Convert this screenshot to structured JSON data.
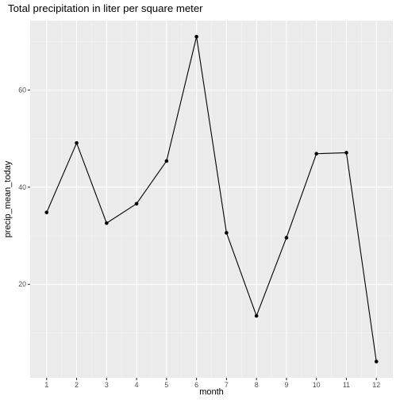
{
  "chart_data": {
    "type": "line",
    "title": "Total precipitation in liter per square meter",
    "xlabel": "month",
    "ylabel": "precip_mean_today",
    "x": [
      1,
      2,
      3,
      4,
      5,
      6,
      7,
      8,
      9,
      10,
      11,
      12
    ],
    "series": [
      {
        "values": [
          34.8,
          49.1,
          32.6,
          36.6,
          45.4,
          71.0,
          30.6,
          13.5,
          29.6,
          46.9,
          47.1,
          4.1
        ]
      }
    ],
    "xticks": [
      "1",
      "2",
      "3",
      "4",
      "5",
      "6",
      "7",
      "8",
      "9",
      "10",
      "11",
      "12"
    ],
    "yticks": [
      "20",
      "40",
      "60"
    ],
    "xlim": [
      0.45,
      12.55
    ],
    "ylim": [
      0.75,
      74.3
    ],
    "grid": true,
    "colors": {
      "panel_background": "#ebebeb",
      "grid_major": "#ffffff",
      "grid_minor": "#f4f4f4",
      "line": "#000000",
      "tick_text": "#4d4d4d"
    }
  }
}
